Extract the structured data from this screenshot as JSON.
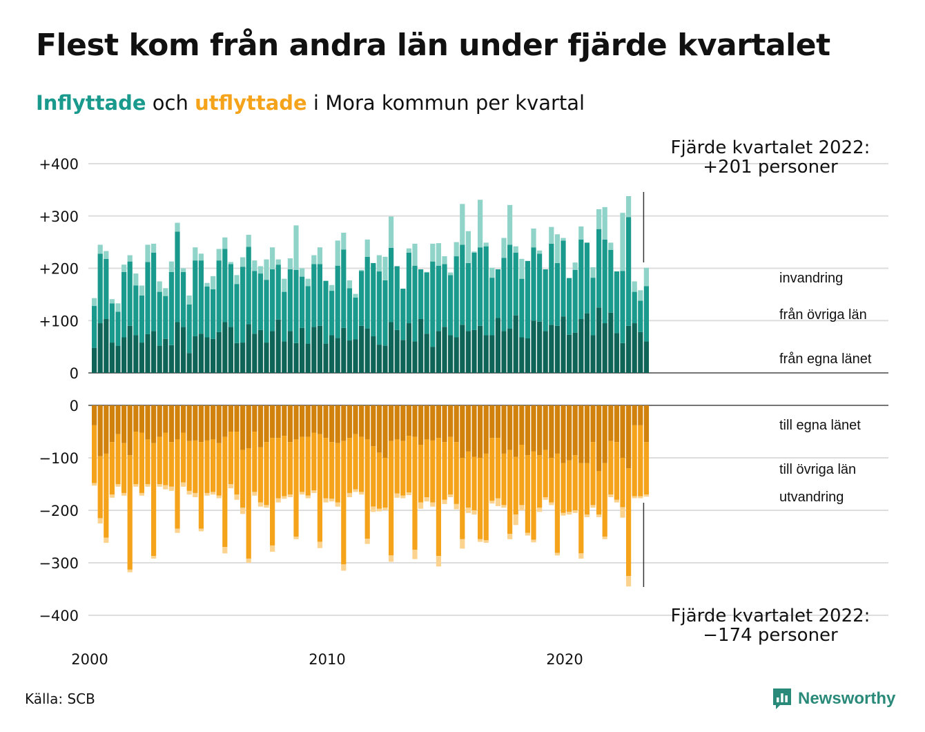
{
  "title": "Flest kom från andra län under fjärde kvartalet",
  "subtitle": {
    "part1": "Inflyttade",
    "part2": " och ",
    "part3": "utflyttade",
    "part4": " i Mora kommun per kvartal"
  },
  "source": "Källa: SCB",
  "logo": {
    "name": "Newsworthy",
    "icon": "bar-chart-logo-icon"
  },
  "colors": {
    "in_own": "#0f6458",
    "in_other": "#1a9a8c",
    "in_immig": "#8fd3c9",
    "out_own": "#d1820c",
    "out_other": "#f5a31a",
    "out_emig": "#fbd38e",
    "grid": "#dddddd",
    "axis": "#222222"
  },
  "chart_data": {
    "type": "bar",
    "stacked": true,
    "x_ticks": [
      "2000",
      "2010",
      "2020"
    ],
    "xlim": [
      "2000Q1",
      "2022Q4"
    ],
    "upper_ticks": [
      "+400",
      "+300",
      "+200",
      "+100",
      "0"
    ],
    "upper_ylim": [
      0,
      400
    ],
    "lower_ticks": [
      "0",
      "−100",
      "−200",
      "−300",
      "−400"
    ],
    "lower_ylim": [
      -400,
      0
    ],
    "grid": true,
    "inflow_series": [
      {
        "name": "från egna länet",
        "values": [
          48,
          95,
          103,
          58,
          52,
          68,
          90,
          72,
          58,
          74,
          80,
          52,
          65,
          53,
          97,
          88,
          38,
          70,
          75,
          68,
          65,
          78,
          97,
          88,
          57,
          58,
          93,
          75,
          82,
          58,
          80,
          102,
          60,
          80,
          57,
          86,
          56,
          88,
          90,
          56,
          72,
          67,
          86,
          62,
          64,
          90,
          85,
          70,
          54,
          52,
          97,
          82,
          63,
          95,
          60,
          103,
          75,
          50,
          80,
          88,
          72,
          68,
          92,
          80,
          82,
          90,
          72,
          72,
          105,
          80,
          85,
          110,
          68,
          66,
          100,
          98,
          80,
          92,
          90,
          108,
          73,
          77,
          103,
          114,
          72,
          125,
          95,
          115,
          76,
          57,
          90,
          95,
          78,
          60
        ],
        "total": [
          143,
          245,
          233,
          141,
          133,
          207,
          225,
          190,
          167,
          245,
          247,
          175,
          162,
          213,
          287,
          200,
          148,
          240,
          228,
          175,
          185,
          237,
          259,
          212,
          187,
          221,
          264,
          215,
          186,
          217,
          240,
          217,
          180,
          219,
          282,
          170,
          180,
          225,
          240,
          168,
          168,
          253,
          268,
          177,
          151,
          197,
          270,
          163,
          225,
          230,
          247,
          195,
          153,
          238,
          247,
          169,
          193,
          247,
          248,
          223,
          192,
          250,
          323,
          271,
          232,
          331,
          249,
          201,
          164,
          258,
          336,
          232,
          240,
          236,
          284,
          214,
          190,
          240,
          265,
          258,
          182,
          259,
          280,
          238,
          202,
          263,
          312,
          249,
          190,
          249,
          348,
          140,
          140,
          201
        ]
      },
      {
        "name": "från övriga län",
        "values": [
          80,
          133,
          115,
          75,
          65,
          125,
          123,
          95,
          90,
          138,
          150,
          103,
          82,
          140,
          173,
          105,
          93,
          145,
          140,
          97,
          95,
          137,
          140,
          120,
          113,
          145,
          148,
          120,
          108,
          120,
          118,
          105,
          95,
          118,
          140,
          98,
          110,
          120,
          118,
          120,
          85,
          138,
          150,
          100,
          80,
          105,
          137,
          140,
          140,
          125,
          142,
          122,
          98,
          135,
          145,
          95,
          117,
          163,
          125,
          120,
          115,
          155,
          153,
          130,
          148,
          150,
          170,
          110,
          93,
          140,
          160,
          120,
          112,
          148,
          140,
          130,
          118,
          155,
          120,
          145,
          108,
          120,
          152,
          135,
          110,
          150,
          160,
          120,
          118,
          138,
          208,
          60,
          60,
          106
        ]
      }
    ],
    "inflow_immigration": {
      "name": "invandring",
      "values": [
        15,
        17,
        15,
        8,
        16,
        14,
        12,
        23,
        19,
        33,
        17,
        20,
        15,
        20,
        17,
        7,
        17,
        25,
        13,
        7,
        25,
        22,
        22,
        4,
        17,
        18,
        23,
        20,
        14,
        39,
        42,
        10,
        25,
        21,
        85,
        16,
        14,
        17,
        32,
        0,
        11,
        48,
        32,
        15,
        7,
        2,
        33,
        0,
        31,
        45,
        60,
        0,
        0,
        8,
        42,
        0,
        1,
        34,
        43,
        15,
        5,
        27,
        78,
        61,
        2,
        91,
        7,
        19,
        0,
        38,
        76,
        12,
        38,
        0,
        36,
        6,
        0,
        32,
        55,
        5,
        1,
        14,
        25,
        0,
        20,
        38,
        62,
        14,
        0,
        111,
        40,
        20,
        20,
        35
      ]
    },
    "outflow_series": [
      {
        "name": "till egna länet",
        "values": [
          -38,
          -97,
          -92,
          -70,
          -55,
          -72,
          -95,
          -50,
          -52,
          -65,
          -72,
          -60,
          -52,
          -70,
          -65,
          -52,
          -68,
          -67,
          -70,
          -67,
          -65,
          -72,
          -60,
          -50,
          -50,
          -85,
          -82,
          -50,
          -80,
          -70,
          -62,
          -62,
          -58,
          -70,
          -65,
          -60,
          -60,
          -52,
          -55,
          -62,
          -70,
          -72,
          -68,
          -62,
          -55,
          -60,
          -65,
          -78,
          -90,
          -100,
          -68,
          -65,
          -68,
          -58,
          -60,
          -75,
          -65,
          -67,
          -62,
          -70,
          -60,
          -70,
          -100,
          -88,
          -98,
          -100,
          -92,
          -62,
          -62,
          -92,
          -85,
          -98,
          -75,
          -95,
          -88,
          -95,
          -85,
          -100,
          -92,
          -110,
          -105,
          -95,
          -110,
          -110,
          -70,
          -125,
          -110,
          -68,
          -70,
          -100,
          -120,
          -38,
          -38,
          -70
        ]
      },
      {
        "name": "till övriga län",
        "values": [
          -110,
          -118,
          -160,
          -100,
          -95,
          -95,
          -218,
          -100,
          -115,
          -85,
          -215,
          -90,
          -100,
          -85,
          -170,
          -95,
          -95,
          -100,
          -165,
          -100,
          -100,
          -100,
          -210,
          -100,
          -120,
          -110,
          -210,
          -115,
          -105,
          -120,
          -205,
          -115,
          -115,
          -100,
          -185,
          -105,
          -112,
          -110,
          -205,
          -115,
          -108,
          -113,
          -235,
          -105,
          -105,
          -105,
          -189,
          -115,
          -107,
          -95,
          -218,
          -103,
          -104,
          -108,
          -215,
          -110,
          -110,
          -118,
          -225,
          -110,
          -110,
          -118,
          -155,
          -107,
          -102,
          -155,
          -165,
          -120,
          -115,
          -98,
          -160,
          -110,
          -115,
          -148,
          -168,
          -100,
          -90,
          -85,
          -189,
          -95,
          -98,
          -105,
          -172,
          -98,
          -120,
          -83,
          -140,
          -102,
          -110,
          -94,
          -205,
          -135,
          -135,
          -100
        ]
      }
    ],
    "outflow_emigration": {
      "name": "utvandring",
      "values": [
        -5,
        -10,
        -10,
        -6,
        -5,
        -5,
        -5,
        -5,
        -5,
        -5,
        -5,
        -5,
        -8,
        -8,
        -8,
        -8,
        -7,
        -8,
        -5,
        -5,
        -5,
        -5,
        -12,
        -8,
        -10,
        -12,
        -8,
        -7,
        -8,
        -5,
        -12,
        -8,
        -5,
        -5,
        -5,
        -5,
        -5,
        -5,
        -12,
        -8,
        -5,
        -8,
        -12,
        -8,
        -5,
        -5,
        -10,
        -10,
        -5,
        -5,
        -12,
        -8,
        -5,
        -5,
        -18,
        -12,
        -8,
        -8,
        -20,
        -8,
        -5,
        -10,
        -18,
        -10,
        -8,
        -5,
        -5,
        -5,
        -15,
        -5,
        -10,
        -20,
        -10,
        -5,
        -5,
        -8,
        -5,
        -5,
        -5,
        -5,
        -5,
        -5,
        -10,
        -5,
        -5,
        -5,
        -5,
        -5,
        -5,
        -20,
        -20,
        -4,
        -4,
        -4
      ]
    },
    "annotation_top": {
      "line1": "Fjärde kvartalet 2022:",
      "line2": "+201 personer"
    },
    "annotation_bottom": {
      "line1": "Fjärde kvartalet 2022:",
      "line2": "−174 personer"
    }
  }
}
